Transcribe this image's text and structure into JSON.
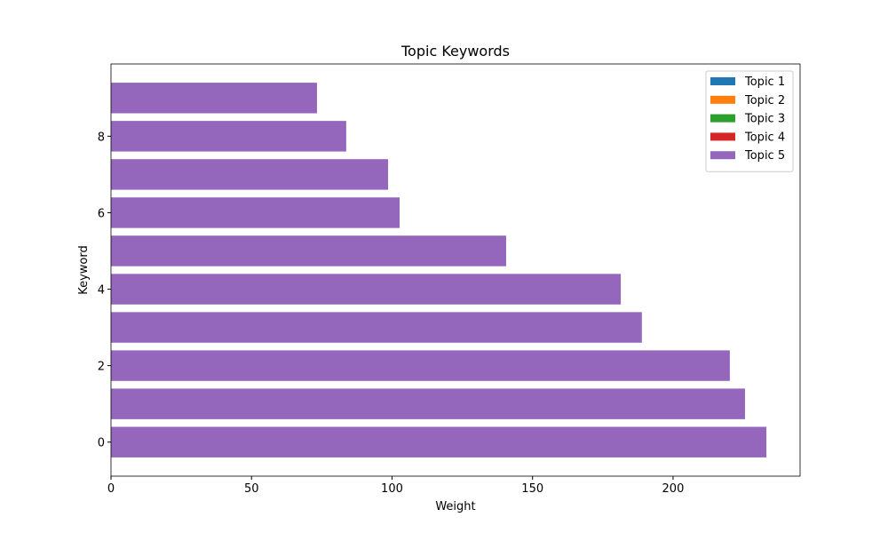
{
  "chart_data": {
    "type": "barh",
    "title": "Topic Keywords",
    "xlabel": "Weight",
    "ylabel": "Keyword",
    "y": [
      0,
      1,
      2,
      3,
      4,
      5,
      6,
      7,
      8,
      9
    ],
    "series": [
      {
        "name": "Topic 1",
        "color": "#1f77b4",
        "values": [
          null,
          null,
          null,
          null,
          null,
          null,
          null,
          null,
          null,
          null
        ]
      },
      {
        "name": "Topic 2",
        "color": "#ff7f0e",
        "values": [
          null,
          null,
          null,
          null,
          null,
          null,
          null,
          null,
          null,
          null
        ]
      },
      {
        "name": "Topic 3",
        "color": "#2ca02c",
        "values": [
          null,
          null,
          null,
          null,
          null,
          null,
          null,
          null,
          null,
          null
        ]
      },
      {
        "name": "Topic 4",
        "color": "#d62728",
        "values": [
          null,
          null,
          null,
          null,
          null,
          null,
          null,
          null,
          null,
          null
        ]
      },
      {
        "name": "Topic 5",
        "color": "#9467bd",
        "values": [
          233.2,
          225.6,
          220.2,
          188.9,
          181.4,
          140.6,
          102.7,
          98.6,
          83.7,
          73.3
        ]
      }
    ],
    "bar_height": 0.8,
    "xlim": [
      0,
      245.2
    ],
    "xticks": [
      0,
      50,
      100,
      150,
      200
    ],
    "ylim": [
      -0.89,
      9.89
    ],
    "yticks": [
      0,
      2,
      4,
      6,
      8
    ],
    "legend": "upper right"
  }
}
